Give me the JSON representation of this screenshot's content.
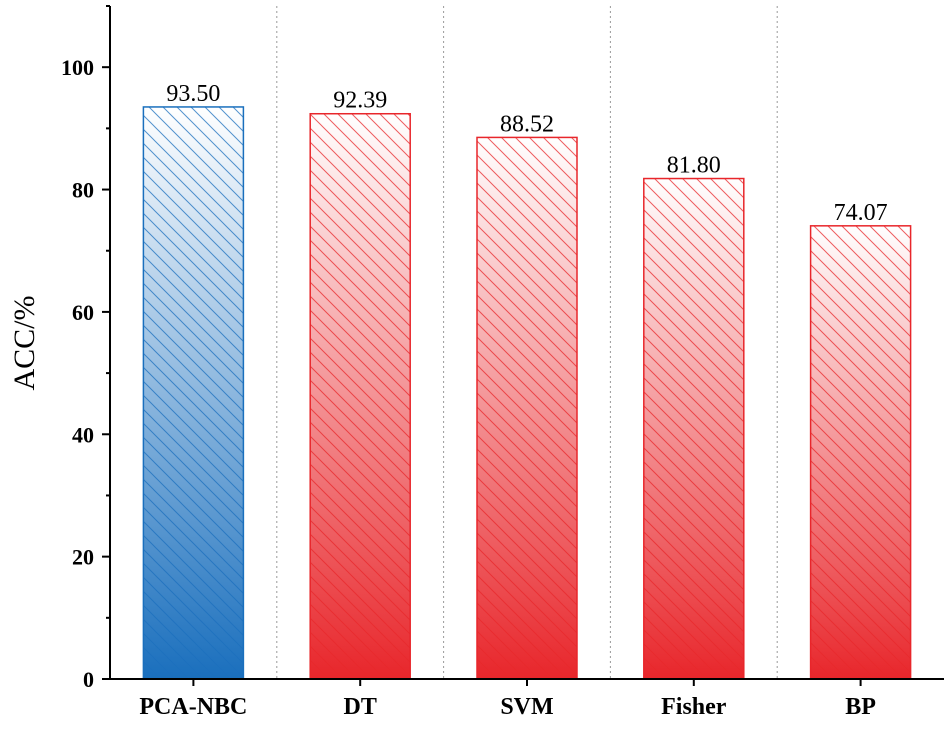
{
  "chart_data": {
    "type": "bar",
    "categories": [
      "PCA-NBC",
      "DT",
      "SVM",
      "Fisher",
      "BP"
    ],
    "values": [
      93.5,
      92.39,
      88.52,
      81.8,
      74.07
    ],
    "value_labels": [
      "93.50",
      "92.39",
      "88.52",
      "81.80",
      "74.07"
    ],
    "title": "",
    "xlabel": "",
    "ylabel": "ACC/%",
    "ylim": [
      0,
      110
    ],
    "yticks": [
      0,
      20,
      40,
      60,
      80,
      100
    ],
    "ytick_labels": [
      "0",
      "20",
      "40",
      "60",
      "80",
      "100"
    ],
    "grid": "vertical dotted separators between categories",
    "bar_fill": "vertical gradient with diagonal hatch",
    "colors": {
      "highlight": "#1a6fbd",
      "highlight_light": "#ffffff",
      "others": "#e8262b",
      "others_light": "#ffffff",
      "separator": "#999999",
      "axis": "#000000"
    }
  }
}
